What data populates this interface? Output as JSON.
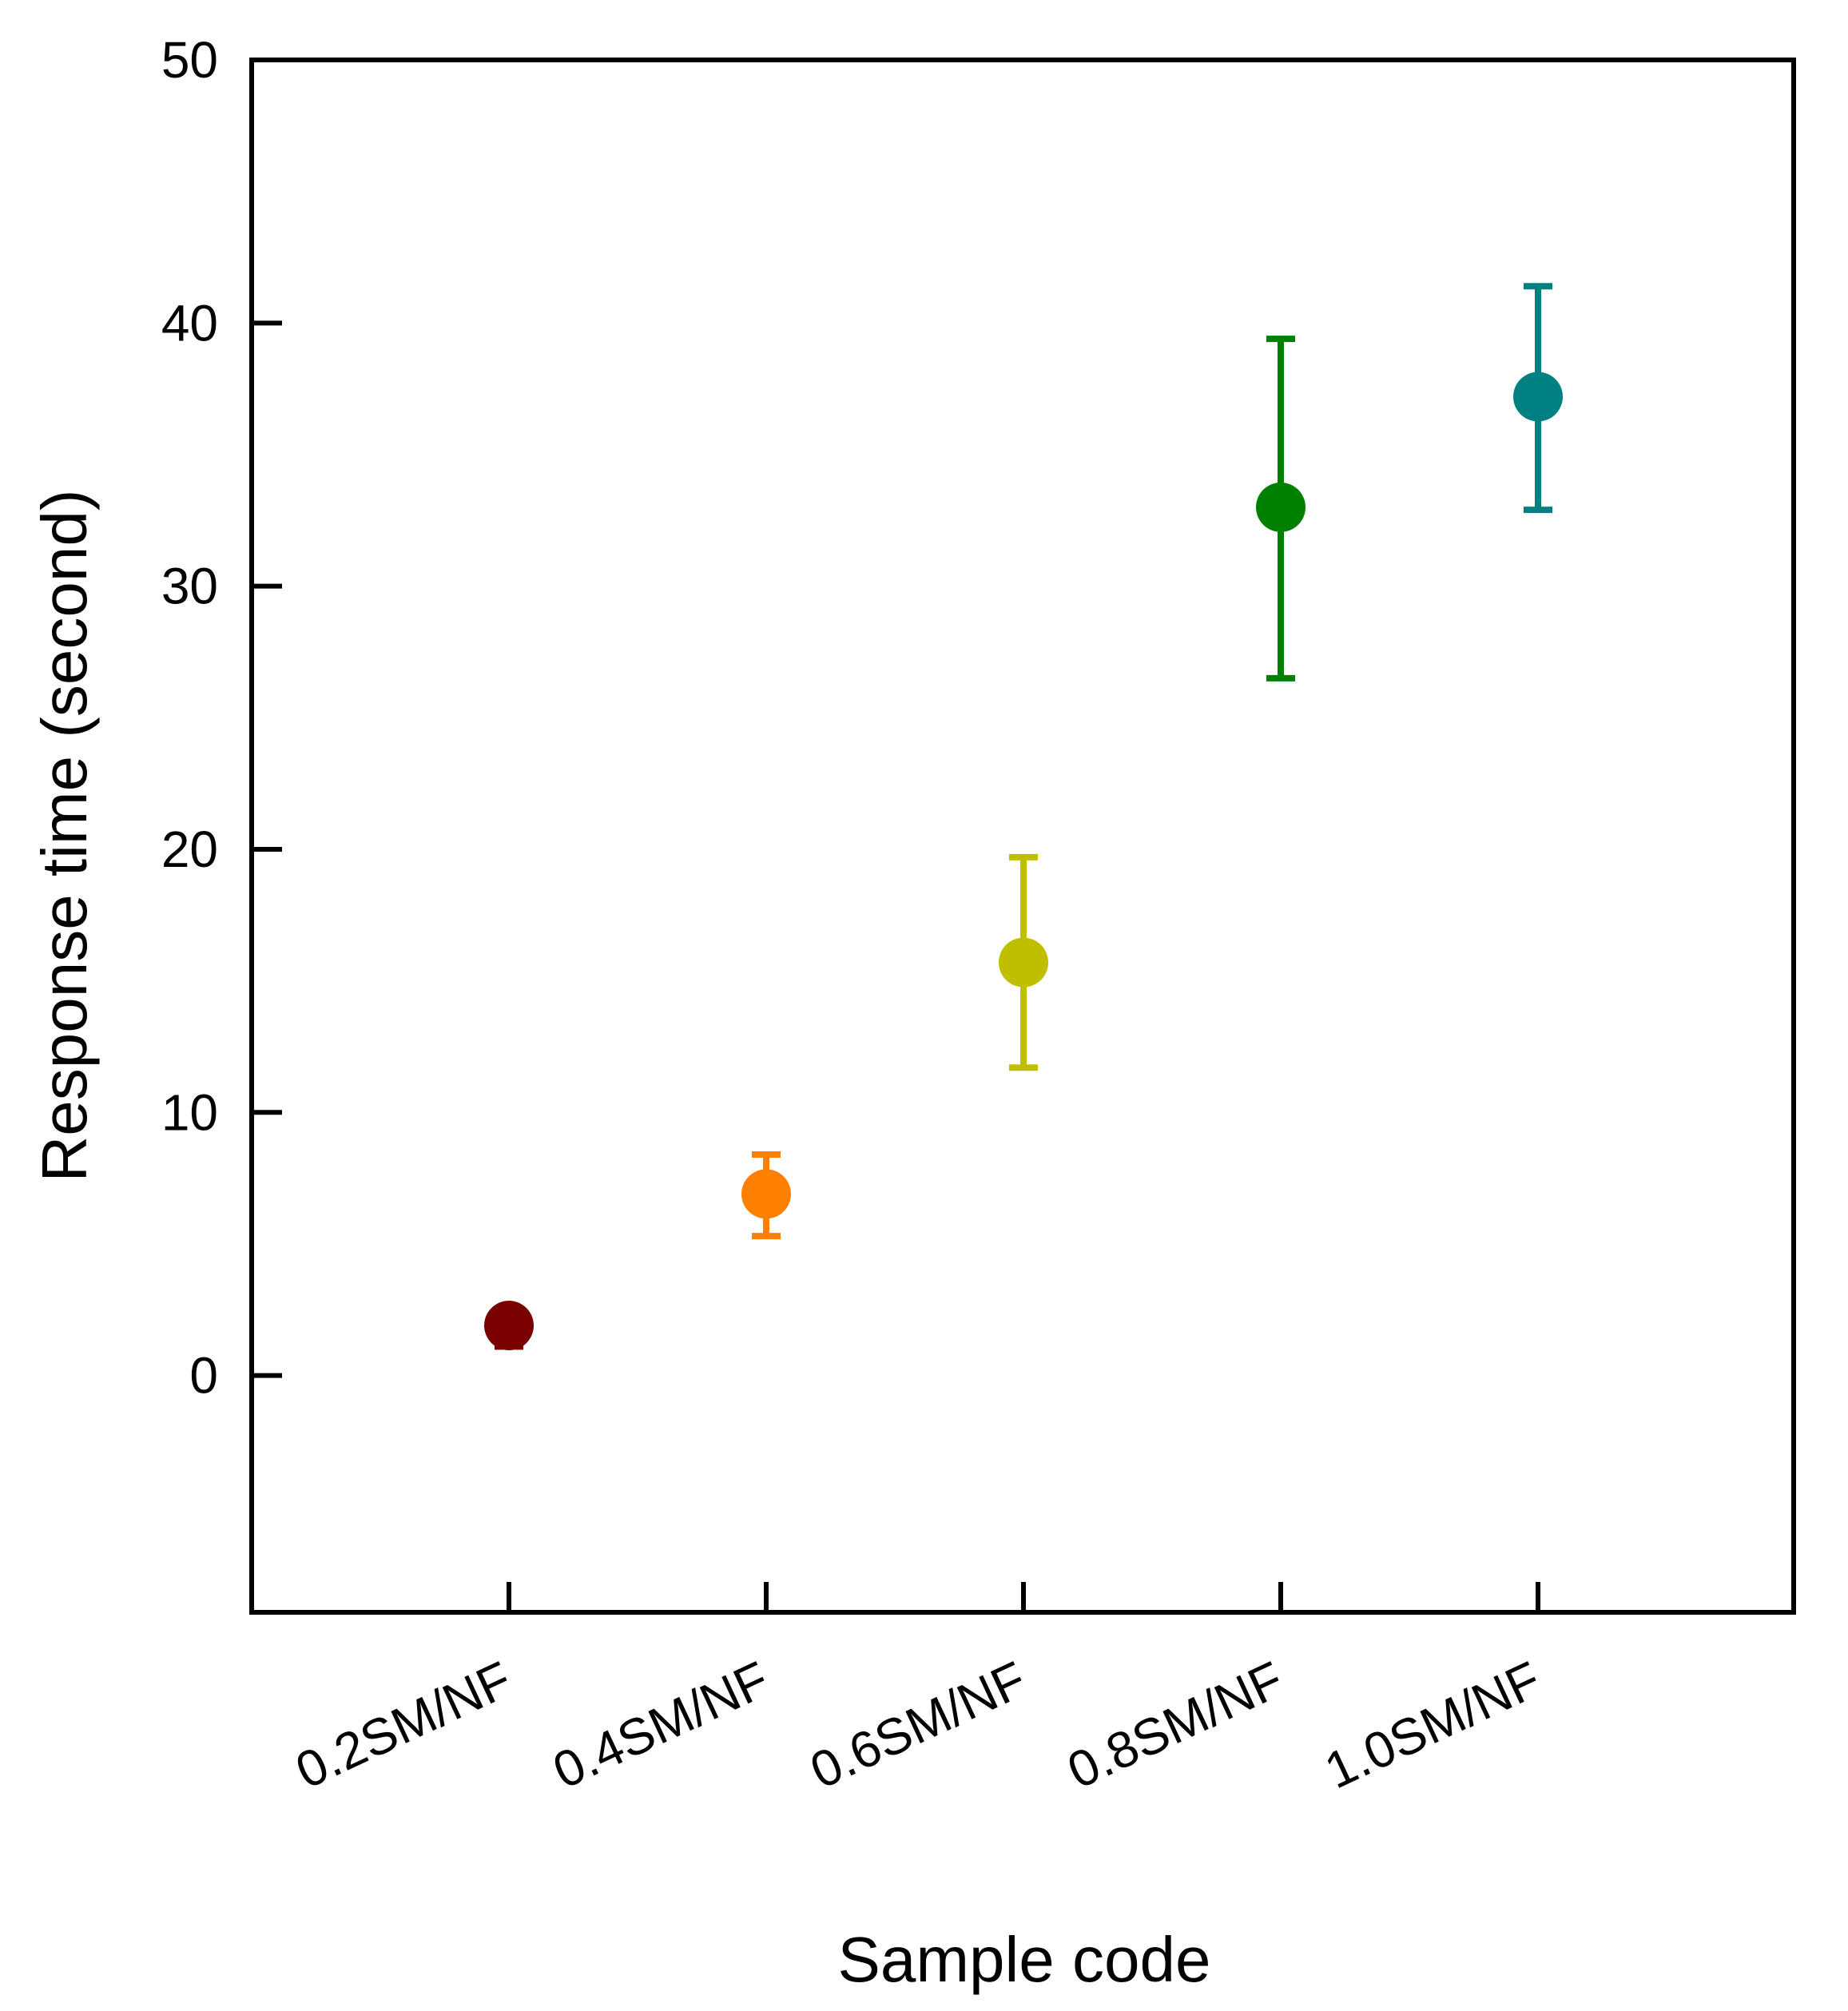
{
  "chart_data": {
    "type": "scatter",
    "xlabel": "Sample code",
    "ylabel": "Response time (second)",
    "categories": [
      "0.2SM/NF",
      "0.4SM/NF",
      "0.6SM/NF",
      "0.8SM/NF",
      "1.0SM/NF"
    ],
    "values": [
      1.9,
      6.9,
      15.7,
      33.0,
      37.2
    ],
    "error_low": [
      1.1,
      5.3,
      11.7,
      26.5,
      32.9
    ],
    "error_high": [
      2.3,
      8.4,
      19.7,
      39.4,
      41.4
    ],
    "colors": [
      "#7a0000",
      "#ff8000",
      "#bfbf00",
      "#008000",
      "#008080"
    ],
    "ylim": [
      -9,
      50
    ],
    "yticks": [
      "0",
      "10",
      "20",
      "30",
      "40",
      "50"
    ],
    "grid": false,
    "legend": "none"
  }
}
